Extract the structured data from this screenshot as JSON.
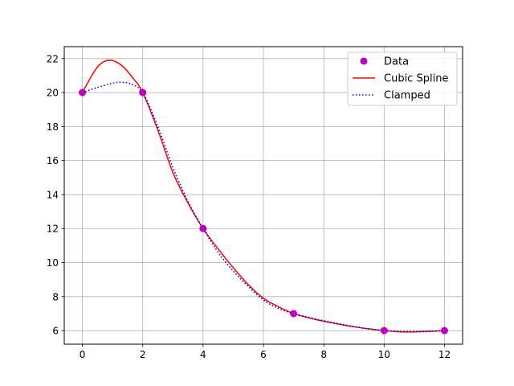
{
  "chart_data": {
    "type": "line",
    "title": "",
    "xlabel": "",
    "ylabel": "",
    "xlim": [
      -0.6,
      12.6
    ],
    "ylim": [
      5.2,
      22.7
    ],
    "xticks": [
      0,
      2,
      4,
      6,
      8,
      10,
      12
    ],
    "yticks": [
      6,
      8,
      10,
      12,
      14,
      16,
      18,
      20,
      22
    ],
    "grid": true,
    "legend_position": "top-right",
    "data_points": {
      "name": "Data",
      "color": "#bf00bf",
      "x": [
        0,
        2,
        4,
        7,
        10,
        12
      ],
      "y": [
        20,
        20,
        12,
        7,
        6,
        6
      ]
    },
    "series": [
      {
        "name": "Cubic Spline",
        "color": "#ff0000",
        "style": "solid",
        "x": [
          0,
          0.5,
          0.9,
          1.3,
          1.7,
          2,
          2.5,
          3,
          3.5,
          4,
          4.5,
          5,
          5.5,
          6,
          6.5,
          7,
          7.5,
          8,
          8.5,
          9,
          9.5,
          10,
          10.5,
          11,
          11.5,
          12
        ],
        "y": [
          20,
          21.5,
          21.9,
          21.6,
          20.8,
          20,
          17.8,
          15.3,
          13.5,
          12,
          10.8,
          9.7,
          8.7,
          7.9,
          7.4,
          7.0,
          6.75,
          6.55,
          6.38,
          6.22,
          6.1,
          6.0,
          5.93,
          5.92,
          5.95,
          6.0
        ]
      },
      {
        "name": "Clamped",
        "color": "#0000ff",
        "style": "dotted",
        "x": [
          0,
          0.5,
          1.0,
          1.3,
          1.6,
          2,
          2.5,
          3,
          3.5,
          4,
          4.5,
          5,
          5.5,
          6,
          6.5,
          7,
          7.5,
          8,
          8.5,
          9,
          9.5,
          10,
          10.5,
          11,
          11.5,
          12
        ],
        "y": [
          20,
          20.3,
          20.55,
          20.6,
          20.5,
          20,
          18.0,
          15.6,
          13.6,
          12,
          10.6,
          9.5,
          8.6,
          7.8,
          7.3,
          7.0,
          6.78,
          6.58,
          6.4,
          6.24,
          6.1,
          6.0,
          5.95,
          5.94,
          5.96,
          6.0
        ]
      }
    ]
  }
}
